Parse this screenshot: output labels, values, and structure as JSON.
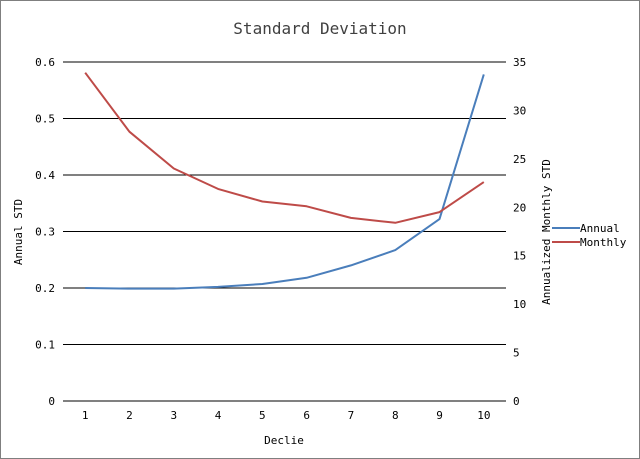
{
  "chart_data": {
    "type": "line",
    "title": "Standard Deviation",
    "xlabel": "Declie",
    "ylabel_left": "Annual STD",
    "ylabel_right": "Annualized Monthly STD",
    "categories": [
      "1",
      "2",
      "3",
      "4",
      "5",
      "6",
      "7",
      "8",
      "9",
      "10"
    ],
    "y_left": {
      "min": 0,
      "max": 0.6,
      "ticks": [
        "0",
        "0.1",
        "0.2",
        "0.3",
        "0.4",
        "0.5",
        "0.6"
      ]
    },
    "y_right": {
      "min": 0,
      "max": 35,
      "ticks": [
        "0",
        "5",
        "10",
        "15",
        "20",
        "25",
        "30",
        "35"
      ]
    },
    "grid": true,
    "legend_position": "right",
    "series": [
      {
        "name": "Annual",
        "axis": "left",
        "color": "#4a7ebb",
        "values": [
          0.2,
          0.199,
          0.199,
          0.202,
          0.207,
          0.218,
          0.24,
          0.267,
          0.322,
          0.578
        ]
      },
      {
        "name": "Monthly",
        "axis": "right",
        "color": "#be4b48",
        "values": [
          33.9,
          27.8,
          24.0,
          21.9,
          20.6,
          20.1,
          18.9,
          18.4,
          19.5,
          22.6
        ]
      }
    ]
  }
}
